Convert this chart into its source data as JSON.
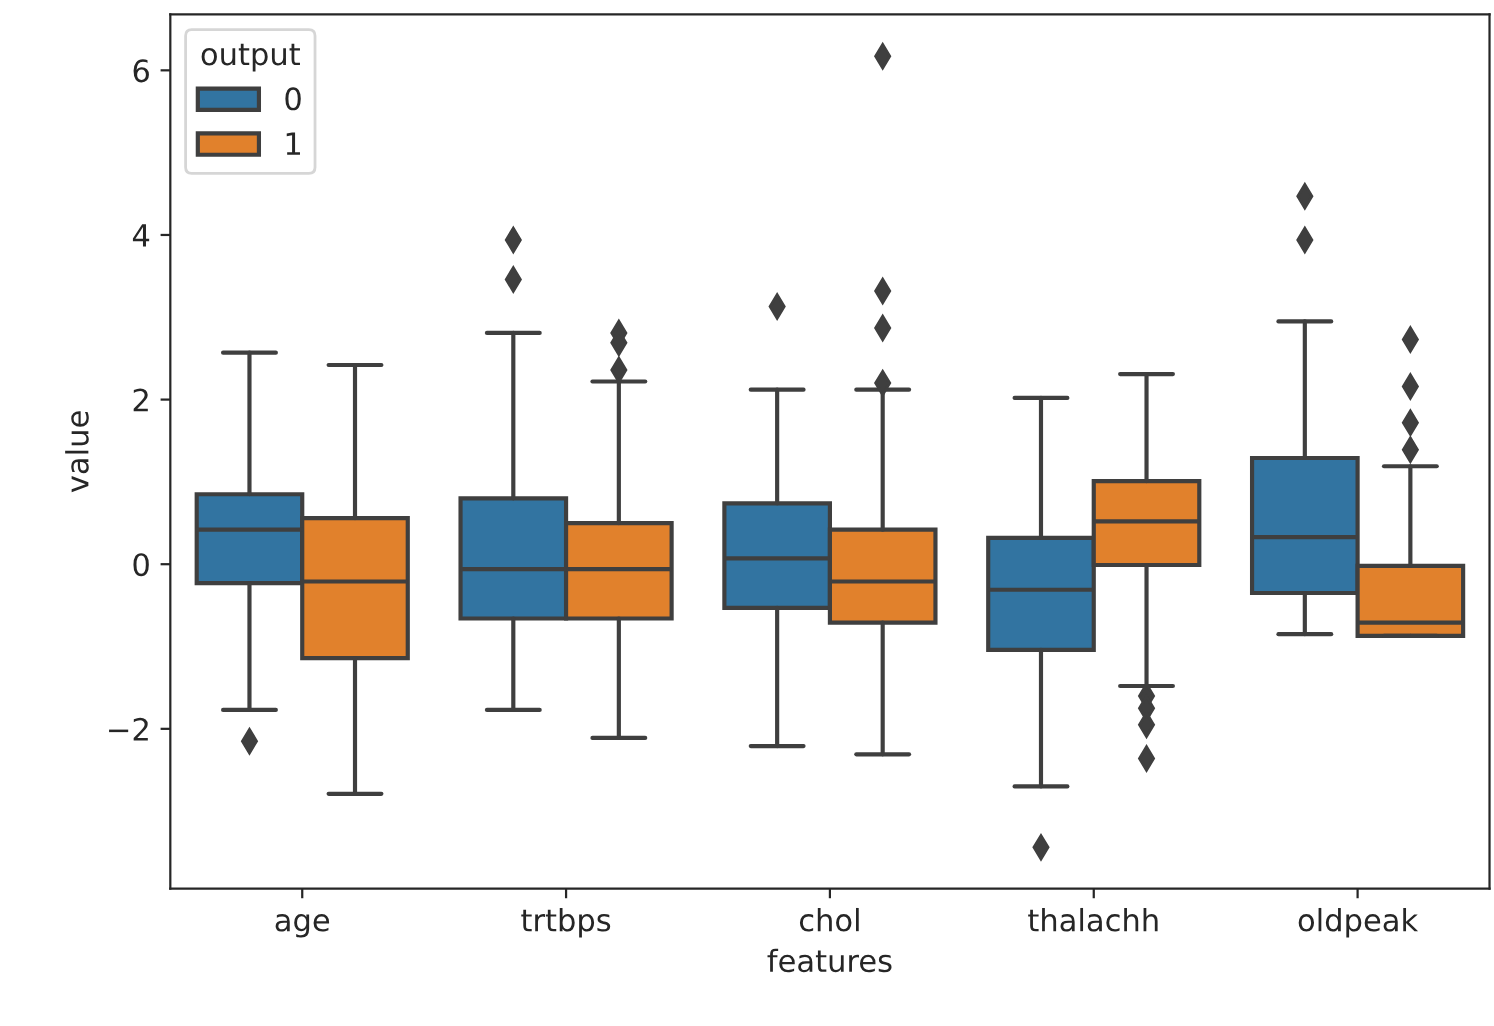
{
  "chart_data": {
    "type": "box",
    "xlabel": "features",
    "ylabel": "value",
    "legend_title": "output",
    "legend": "top left",
    "grid": false,
    "marker": "diamond",
    "categories": [
      "age",
      "trtbps",
      "chol",
      "thalachh",
      "oldpeak"
    ],
    "ylim": [
      -3.94,
      6.68
    ],
    "yticks": [
      {
        "value": -2,
        "label": "−2"
      },
      0,
      2,
      4,
      6
    ],
    "series": [
      {
        "name": "0",
        "color": "#3274a1",
        "boxes": [
          {
            "low": -1.77,
            "q1": -0.23,
            "median": 0.42,
            "q3": 0.85,
            "high": 2.57,
            "outliers": [
              -2.15
            ]
          },
          {
            "low": -1.77,
            "q1": -0.66,
            "median": -0.06,
            "q3": 0.8,
            "high": 2.81,
            "outliers": [
              3.94,
              3.46
            ]
          },
          {
            "low": -2.21,
            "q1": -0.53,
            "median": 0.07,
            "q3": 0.74,
            "high": 2.12,
            "outliers": [
              3.13
            ]
          },
          {
            "low": -2.7,
            "q1": -1.04,
            "median": -0.31,
            "q3": 0.32,
            "high": 2.02,
            "outliers": [
              -3.44
            ]
          },
          {
            "low": -0.85,
            "q1": -0.35,
            "median": 0.33,
            "q3": 1.29,
            "high": 2.95,
            "outliers": [
              4.47,
              3.94
            ]
          }
        ]
      },
      {
        "name": "1",
        "color": "#e1812c",
        "boxes": [
          {
            "low": -2.79,
            "q1": -1.14,
            "median": -0.21,
            "q3": 0.56,
            "high": 2.42
          },
          {
            "low": -2.11,
            "q1": -0.66,
            "median": -0.06,
            "q3": 0.5,
            "high": 2.22,
            "outliers": [
              2.81,
              2.69,
              2.36
            ]
          },
          {
            "low": -2.31,
            "q1": -0.71,
            "median": -0.21,
            "q3": 0.42,
            "high": 2.12,
            "outliers": [
              6.17,
              3.32,
              2.87,
              2.2
            ]
          },
          {
            "low": -1.48,
            "q1": -0.01,
            "median": 0.52,
            "q3": 1.01,
            "high": 2.31,
            "outliers": [
              -1.6,
              -1.75,
              -1.95,
              -2.36
            ]
          },
          {
            "low": -0.87,
            "q1": -0.87,
            "median": -0.71,
            "q3": -0.02,
            "high": 1.19,
            "outliers": [
              2.73,
              2.16,
              1.72,
              1.39
            ]
          }
        ]
      }
    ]
  }
}
